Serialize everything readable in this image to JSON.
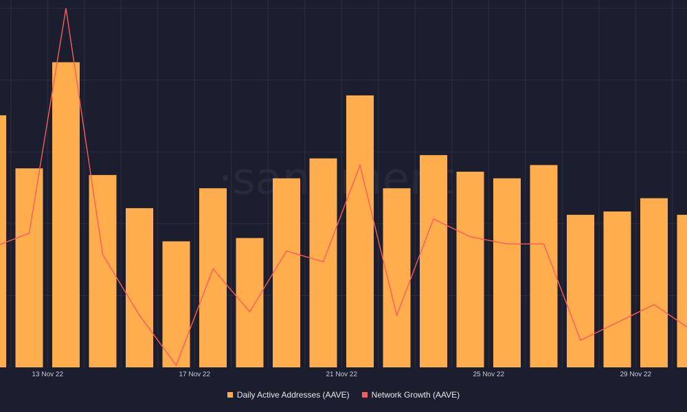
{
  "colors": {
    "background": "#1b1e2e",
    "grid": "#2a2e40",
    "bar": "#ffad4d",
    "line": "#ff5b5b",
    "text": "#c9ccd6",
    "watermark": "#262a3b"
  },
  "watermark": "·santiment·",
  "chart_data": {
    "type": "bar",
    "title": "",
    "xlabel": "",
    "ylabel": "",
    "grid": true,
    "legend_position": "bottom-center",
    "categories": [
      "12 Nov 22",
      "13 Nov 22",
      "14 Nov 22",
      "15 Nov 22",
      "16 Nov 22",
      "17 Nov 22",
      "18 Nov 22",
      "19 Nov 22",
      "20 Nov 22",
      "21 Nov 22",
      "22 Nov 22",
      "23 Nov 22",
      "24 Nov 22",
      "25 Nov 22",
      "26 Nov 22",
      "27 Nov 22",
      "28 Nov 22",
      "29 Nov 22",
      "30 Nov 22",
      "1 Dec 22"
    ],
    "x_tick_labels": [
      {
        "category": "13 Nov 22",
        "label": "13 Nov 22"
      },
      {
        "category": "17 Nov 22",
        "label": "17 Nov 22"
      },
      {
        "category": "21 Nov 22",
        "label": "21 Nov 22"
      },
      {
        "category": "25 Nov 22",
        "label": "25 Nov 22"
      },
      {
        "category": "29 Nov 22",
        "label": "29 Nov 22"
      }
    ],
    "series": [
      {
        "name": "Daily Active Addresses (AAVE)",
        "kind": "bar",
        "ylim": [
          0,
          100
        ],
        "values": [
          76,
          60,
          92,
          58,
          48,
          38,
          54,
          39,
          57,
          63,
          82,
          54,
          64,
          59,
          57,
          61,
          46,
          47,
          51,
          46
        ]
      },
      {
        "name": "Network Growth (AAVE)",
        "kind": "line",
        "ylim": [
          0,
          100
        ],
        "values": [
          33,
          37,
          100,
          31,
          14,
          0,
          27,
          15,
          32,
          29,
          56,
          14,
          41,
          36,
          34,
          34,
          7,
          12,
          17,
          10
        ]
      }
    ]
  }
}
